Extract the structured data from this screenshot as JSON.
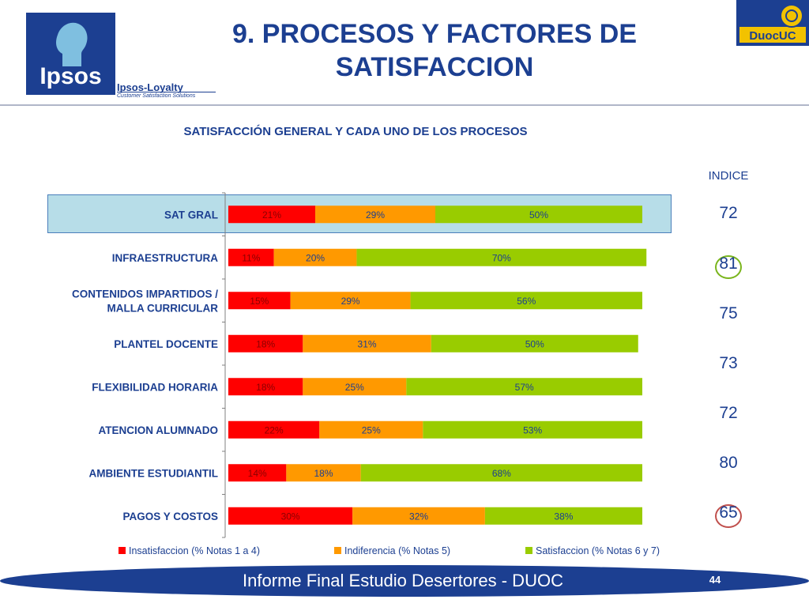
{
  "header": {
    "title_line1": "9. PROCESOS Y FACTORES DE",
    "title_line2": "SATISFACCION",
    "logo_text": "Ipsos",
    "loyalty_text": "Ipsos-Loyalty",
    "loyalty_sub": "Customer Satisfaction Solutions",
    "duoc_text": "DuocUC"
  },
  "indice_label": "INDICE",
  "indices": [
    "72",
    "81",
    "75",
    "73",
    "72",
    "80",
    "65"
  ],
  "colors": {
    "insatisfaccion": "#ff0000",
    "indiferencia": "#ff9900",
    "satisfaccion": "#99cc00",
    "brand": "#1c3f91"
  },
  "chart_data": {
    "type": "bar",
    "orientation": "horizontal-stacked-100",
    "title": "SATISFACCIÓN GENERAL Y CADA UNO DE LOS PROCESOS",
    "categories": [
      "SAT GRAL",
      "INFRAESTRUCTURA",
      "CONTENIDOS IMPARTIDOS / MALLA CURRICULAR",
      "PLANTEL DOCENTE",
      "FLEXIBILIDAD HORARIA",
      "ATENCION ALUMNADO",
      "AMBIENTE ESTUDIANTIL",
      "PAGOS Y COSTOS"
    ],
    "category_lines": [
      [
        "SAT GRAL"
      ],
      [
        "INFRAESTRUCTURA"
      ],
      [
        "CONTENIDOS IMPARTIDOS /",
        "MALLA CURRICULAR"
      ],
      [
        "PLANTEL DOCENTE"
      ],
      [
        "FLEXIBILIDAD HORARIA"
      ],
      [
        "ATENCION ALUMNADO"
      ],
      [
        "AMBIENTE ESTUDIANTIL"
      ],
      [
        "PAGOS Y COSTOS"
      ]
    ],
    "series": [
      {
        "name": "Insatisfaccion (% Notas 1 a 4)",
        "values": [
          21,
          11,
          15,
          18,
          18,
          22,
          14,
          30
        ],
        "labels": [
          "21%",
          "11%",
          "15%",
          "18%",
          "18%",
          "22%",
          "14%",
          "30%"
        ]
      },
      {
        "name": "Indiferencia (% Notas 5)",
        "values": [
          29,
          20,
          29,
          31,
          25,
          25,
          18,
          32
        ],
        "labels": [
          "29%",
          "20%",
          "29%",
          "31%",
          "25%",
          "25%",
          "18%",
          "32%"
        ]
      },
      {
        "name": "Satisfaccion (% Notas 6 y 7)",
        "values": [
          50,
          70,
          56,
          50,
          57,
          53,
          68,
          38
        ],
        "labels": [
          "50%",
          "70%",
          "56%",
          "50%",
          "57%",
          "53%",
          "68%",
          "38%"
        ]
      }
    ],
    "legend_position": "bottom",
    "grid": false
  },
  "footer": {
    "text": "Informe Final Estudio Desertores - DUOC",
    "page": "44"
  }
}
